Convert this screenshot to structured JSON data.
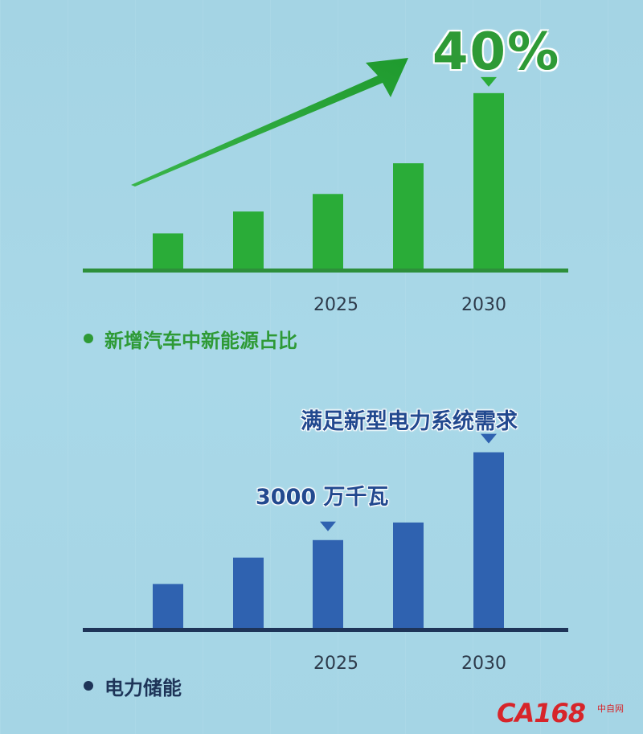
{
  "chart_data": [
    {
      "type": "bar",
      "categories": [
        "",
        "",
        "2025",
        "",
        "2030"
      ],
      "values": [
        8,
        13,
        17,
        24,
        40
      ],
      "ylim": [
        0,
        44
      ],
      "color": "#2aac38",
      "axis_color": "#2d8f3b",
      "annotation": "40%",
      "legend": "新增汽车中新能源占比",
      "trend_arrow": true
    },
    {
      "type": "bar",
      "categories": [
        "",
        "",
        "2025",
        "",
        "2030"
      ],
      "values": [
        1500,
        2400,
        3000,
        3600,
        6000
      ],
      "ylim": [
        0,
        6400
      ],
      "color": "#2f62b0",
      "axis_color": "#1e3458",
      "annotations": [
        {
          "category_index": 2,
          "text": "3000 万千瓦"
        },
        {
          "category_index": 4,
          "text": "满足新型电力系统需求"
        }
      ],
      "legend": "电力储能"
    }
  ],
  "watermark": {
    "logo": "CA168",
    "sub": "中自网"
  }
}
